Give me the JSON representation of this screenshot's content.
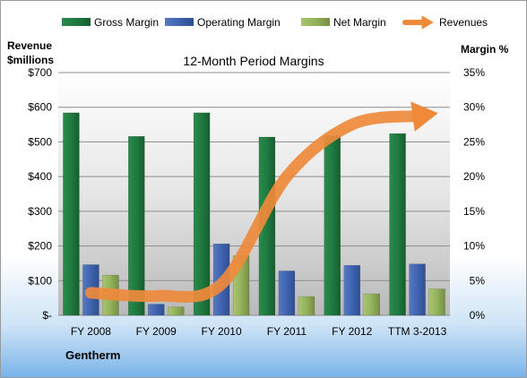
{
  "chart_data": {
    "type": "bar",
    "title": "12-Month Period Margins",
    "company": "Gentherm",
    "left_axis": {
      "label_line1": "Revenue",
      "label_line2": "$millions",
      "ylim": [
        0,
        700
      ],
      "ticks": [
        "$-",
        "$100",
        "$200",
        "$300",
        "$400",
        "$500",
        "$600",
        "$700"
      ]
    },
    "right_axis": {
      "label": "Margin %",
      "ylim": [
        0,
        35
      ],
      "ticks": [
        "0%",
        "5%",
        "10%",
        "15%",
        "20%",
        "25%",
        "30%",
        "35%"
      ]
    },
    "categories": [
      "FY 2008",
      "FY 2009",
      "FY 2010",
      "FY 2011",
      "FY 2012",
      "TTM 3-2013"
    ],
    "series": [
      {
        "name": "Gross Margin",
        "axis": "right",
        "kind": "bar",
        "color": "#1E7C3F",
        "values": [
          29.2,
          25.8,
          29.2,
          25.7,
          25.9,
          26.2
        ]
      },
      {
        "name": "Operating Margin",
        "axis": "right",
        "kind": "bar",
        "color": "#3F63AF",
        "values": [
          7.3,
          1.6,
          10.3,
          6.4,
          7.2,
          7.4
        ]
      },
      {
        "name": "Net Margin",
        "axis": "right",
        "kind": "bar",
        "color": "#93B25A",
        "values": [
          5.8,
          1.2,
          8.6,
          2.7,
          3.1,
          3.8
        ]
      },
      {
        "name": "Revenues",
        "axis": "left",
        "kind": "line",
        "color": "#EF8A3B",
        "values": [
          65,
          56,
          90,
          400,
          550,
          575
        ]
      }
    ],
    "grid": true,
    "legend_position": "top"
  }
}
